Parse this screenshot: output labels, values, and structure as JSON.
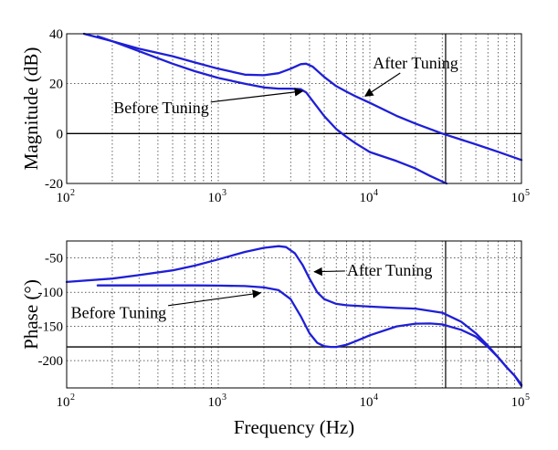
{
  "chart_data": [
    {
      "type": "line",
      "ylabel": "Magnitude (dB)",
      "xlabel": "",
      "xscale": "log",
      "xlim": [
        100,
        100000
      ],
      "ylim": [
        -20,
        40
      ],
      "yticks": [
        -20,
        0,
        20,
        40
      ],
      "xticks": [
        100,
        1000,
        10000,
        100000
      ],
      "xtick_labels": [
        {
          "base": "10",
          "exp": "2"
        },
        {
          "base": "10",
          "exp": "3"
        },
        {
          "base": "10",
          "exp": "4"
        },
        {
          "base": "10",
          "exp": "5"
        }
      ],
      "grid": true,
      "reference_lines": {
        "horizontal": [
          0
        ],
        "vertical": [
          31600
        ]
      },
      "series": [
        {
          "x": [
            130,
            200,
            300,
            500,
            700,
            1000,
            1500,
            2000,
            2500,
            3000,
            3500,
            3800,
            4200,
            5000,
            6000,
            7000,
            8000,
            10000,
            15000,
            20000,
            30000,
            50000,
            70000,
            100000
          ],
          "y": [
            40,
            37,
            34,
            31,
            28.5,
            26,
            23.6,
            23.4,
            24.2,
            26,
            27.8,
            28,
            26.8,
            22.7,
            19,
            16.8,
            15,
            12.3,
            7.1,
            4,
            0,
            -4.3,
            -7.3,
            -10.6
          ],
          "color": "#1f1fd6"
        },
        {
          "x": [
            160,
            200,
            300,
            500,
            700,
            1000,
            1500,
            2000,
            2500,
            3000,
            3500,
            3800,
            4200,
            5000,
            6000,
            7000,
            8000,
            10000,
            15000,
            20000,
            25000,
            32000
          ],
          "y": [
            39,
            37,
            33,
            28,
            25,
            22.3,
            20,
            18.5,
            18,
            18,
            17.8,
            16.5,
            13,
            7,
            1.8,
            -1.3,
            -3.8,
            -7.4,
            -11,
            -14,
            -17,
            -20
          ],
          "color": "#1f1fd6"
        }
      ],
      "annotations": [
        {
          "text": "After Tuning",
          "x": 20000,
          "y": 27.6,
          "arrow_to": [
            9300,
            15
          ]
        },
        {
          "text": "Before Tuning",
          "x": 420,
          "y": 9.6,
          "arrow_to": [
            3600,
            17
          ]
        }
      ]
    },
    {
      "type": "line",
      "ylabel": "Phase (°)",
      "xlabel": "Frequency (Hz)",
      "xscale": "log",
      "xlim": [
        100,
        100000
      ],
      "ylim": [
        -240,
        -25
      ],
      "yticks": [
        -200,
        -150,
        -100,
        -50
      ],
      "xticks": [
        100,
        1000,
        10000,
        100000
      ],
      "xtick_labels": [
        {
          "base": "10",
          "exp": "2"
        },
        {
          "base": "10",
          "exp": "3"
        },
        {
          "base": "10",
          "exp": "4"
        },
        {
          "base": "10",
          "exp": "5"
        }
      ],
      "grid": true,
      "reference_lines": {
        "horizontal": [
          -180
        ],
        "vertical": [
          31600
        ]
      },
      "series": [
        {
          "x": [
            100,
            200,
            300,
            500,
            700,
            1000,
            1500,
            2000,
            2500,
            2800,
            3200,
            3600,
            4000,
            4500,
            5000,
            6000,
            7000,
            10000,
            15000,
            20000,
            30000,
            40000,
            50000,
            60000,
            70000,
            80000,
            90000,
            100000
          ],
          "y": [
            -85,
            -80,
            -75,
            -68,
            -61,
            -52,
            -41,
            -35,
            -32.6,
            -34,
            -43,
            -60,
            -80,
            -100,
            -110,
            -117,
            -119,
            -121,
            -123,
            -124,
            -130,
            -143,
            -160,
            -178,
            -195,
            -210,
            -222,
            -235
          ],
          "color": "#1f1fd6"
        },
        {
          "x": [
            160,
            200,
            300,
            500,
            700,
            1000,
            1500,
            2000,
            2500,
            3000,
            3500,
            4000,
            4500,
            5000,
            5500,
            6000,
            7000,
            8000,
            10000,
            15000,
            20000,
            25000,
            30000,
            40000,
            50000,
            60000,
            70000,
            80000,
            90000,
            100000
          ],
          "y": [
            -90,
            -90,
            -90,
            -90,
            -90,
            -90.3,
            -91,
            -93,
            -97,
            -110,
            -135,
            -160,
            -174,
            -179,
            -180,
            -180,
            -177,
            -172,
            -163,
            -150,
            -146,
            -145.7,
            -147,
            -155,
            -165,
            -180,
            -195,
            -210,
            -222,
            -237
          ],
          "color": "#1f1fd6"
        }
      ],
      "annotations": [
        {
          "text": "After Tuning",
          "x": 13500,
          "y": -70,
          "arrow_to": [
            4300,
            -70
          ]
        },
        {
          "text": "Before Tuning",
          "x": 220,
          "y": -132,
          "arrow_to": [
            1900,
            -101
          ]
        }
      ]
    }
  ]
}
